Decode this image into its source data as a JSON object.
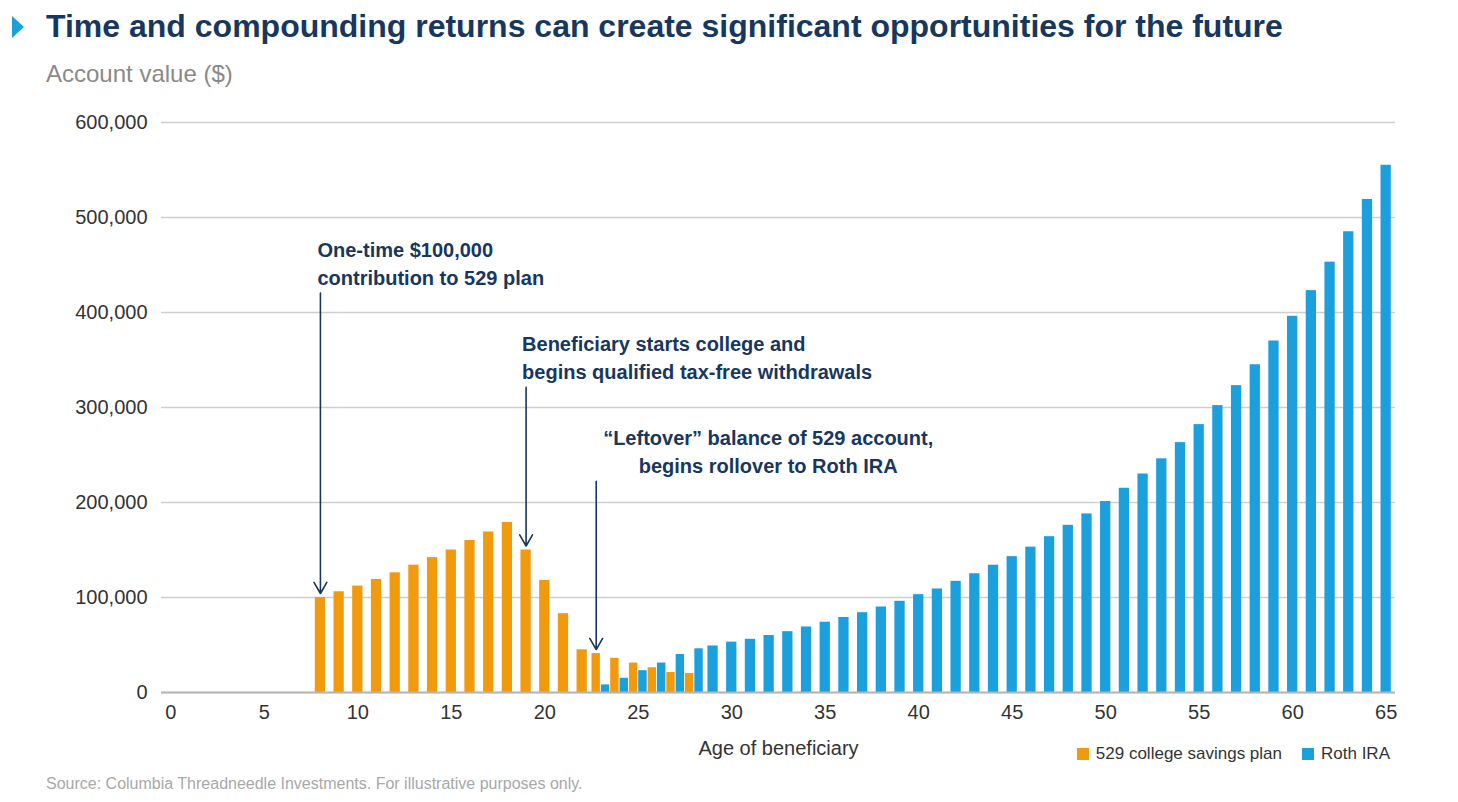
{
  "chart_data": {
    "type": "bar",
    "title": "Time and compounding returns can create significant opportunities for the future",
    "y_label": "Account value ($)",
    "x_label": "Age of beneficiary",
    "source": "Source: Columbia Threadneedle Investments. For illustrative purposes only.",
    "x": [
      8,
      9,
      10,
      11,
      12,
      13,
      14,
      15,
      16,
      17,
      18,
      19,
      20,
      21,
      22,
      23,
      24,
      25,
      26,
      27,
      28,
      29,
      30,
      31,
      32,
      33,
      34,
      35,
      36,
      37,
      38,
      39,
      40,
      41,
      42,
      43,
      44,
      45,
      46,
      47,
      48,
      49,
      50,
      51,
      52,
      53,
      54,
      55,
      56,
      57,
      58,
      59,
      60,
      61,
      62,
      63,
      64,
      65
    ],
    "series": [
      {
        "name": "529 college savings plan",
        "color": "#f29a0e",
        "values": [
          100000,
          106000,
          112000,
          119000,
          126000,
          134000,
          142000,
          150000,
          160000,
          169000,
          179000,
          150000,
          118000,
          83000,
          45000,
          41000,
          36000,
          31000,
          26000,
          21000,
          20000,
          null,
          null,
          null,
          null,
          null,
          null,
          null,
          null,
          null,
          null,
          null,
          null,
          null,
          null,
          null,
          null,
          null,
          null,
          null,
          null,
          null,
          null,
          null,
          null,
          null,
          null,
          null,
          null,
          null,
          null,
          null,
          null,
          null,
          null,
          null,
          null,
          null
        ]
      },
      {
        "name": "Roth IRA",
        "color": "#1aa0dc",
        "values": [
          null,
          null,
          null,
          null,
          null,
          null,
          null,
          null,
          null,
          null,
          null,
          null,
          null,
          null,
          null,
          8000,
          15000,
          23000,
          31000,
          40000,
          46000,
          49000,
          53000,
          56000,
          60000,
          64000,
          69000,
          74000,
          79000,
          84000,
          90000,
          96000,
          103000,
          109000,
          117000,
          125000,
          134000,
          143000,
          153000,
          164000,
          176000,
          188000,
          201000,
          215000,
          230000,
          246000,
          263000,
          282000,
          302000,
          323000,
          345000,
          370000,
          396000,
          423000,
          453000,
          485000,
          519000,
          555000
        ]
      }
    ],
    "xlim": [
      -0.5,
      65.5
    ],
    "xticks": [
      0,
      5,
      10,
      15,
      20,
      25,
      30,
      35,
      40,
      45,
      50,
      55,
      60,
      65
    ],
    "ylim": [
      0,
      600000
    ],
    "yticks": [
      0,
      {
        "value": 100000,
        "label": "100,000"
      },
      {
        "value": 200000,
        "label": "200,000"
      },
      {
        "value": 300000,
        "label": "300,000"
      },
      {
        "value": 400000,
        "label": "400,000"
      },
      {
        "value": 500000,
        "label": "500,000"
      },
      {
        "value": 600000,
        "label": "600,000"
      }
    ],
    "grid": true,
    "legend": "lower right",
    "annotations": [
      {
        "text": "One-time $100,000\ncontribution to 529 plan",
        "x": 8,
        "series": "529 college savings plan"
      },
      {
        "text": "Beneficiary starts college and\nbegins qualified tax-free withdrawals",
        "x": 19,
        "series": "529 college savings plan"
      },
      {
        "text": "“Leftover” balance of 529 account,\nbegins rollover to Roth IRA",
        "x": 23,
        "series": "529 college savings plan"
      }
    ]
  }
}
